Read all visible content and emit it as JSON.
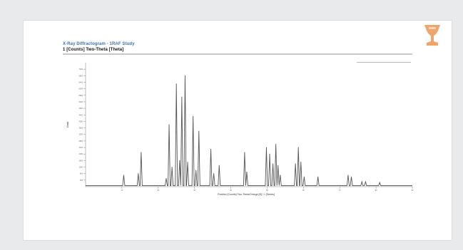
{
  "logo": {
    "icon": "trophy-icon",
    "color": "#f0a66a"
  },
  "chart_data": {
    "type": "line",
    "title": "X-Ray Diffractogram - 1RAF Study",
    "subtitle": "1 [Counts] Two-Theta [Theta]",
    "xlabel": "Position [Counts] Two-Theta/Omega [Θ] / 1 [Series]",
    "ylabel": "Data",
    "xlim": [
      0,
      90
    ],
    "ylim": [
      0,
      7600
    ],
    "x_ticks": [
      10,
      20,
      30,
      40,
      50,
      60,
      70,
      80,
      90
    ],
    "y_ticks": [
      400,
      800,
      1200,
      1600,
      2000,
      2400,
      2800,
      3200,
      3600,
      4000,
      4400,
      4800,
      5200,
      5600,
      6000,
      6400,
      6800,
      7200
    ],
    "baseline": 60,
    "line_color": "#555555",
    "legend_position": "top-right",
    "peaks": [
      {
        "x": 10.5,
        "y": 700
      },
      {
        "x": 14.5,
        "y": 800
      },
      {
        "x": 15.3,
        "y": 2100
      },
      {
        "x": 22.2,
        "y": 500
      },
      {
        "x": 23.0,
        "y": 3800
      },
      {
        "x": 23.8,
        "y": 1200
      },
      {
        "x": 25.0,
        "y": 6300
      },
      {
        "x": 25.9,
        "y": 1600
      },
      {
        "x": 26.5,
        "y": 5500
      },
      {
        "x": 27.4,
        "y": 6800
      },
      {
        "x": 28.1,
        "y": 1500
      },
      {
        "x": 29.6,
        "y": 4300
      },
      {
        "x": 30.4,
        "y": 1000
      },
      {
        "x": 31.2,
        "y": 3400
      },
      {
        "x": 34.5,
        "y": 2300
      },
      {
        "x": 35.3,
        "y": 800
      },
      {
        "x": 36.8,
        "y": 1300
      },
      {
        "x": 43.8,
        "y": 2100
      },
      {
        "x": 44.4,
        "y": 900
      },
      {
        "x": 49.8,
        "y": 2400
      },
      {
        "x": 50.7,
        "y": 2000
      },
      {
        "x": 51.6,
        "y": 1400
      },
      {
        "x": 52.4,
        "y": 2600
      },
      {
        "x": 53.0,
        "y": 1300
      },
      {
        "x": 53.6,
        "y": 700
      },
      {
        "x": 57.8,
        "y": 1400
      },
      {
        "x": 58.6,
        "y": 2400
      },
      {
        "x": 59.3,
        "y": 1500
      },
      {
        "x": 60.2,
        "y": 600
      },
      {
        "x": 64.0,
        "y": 600
      },
      {
        "x": 72.3,
        "y": 700
      },
      {
        "x": 73.2,
        "y": 600
      },
      {
        "x": 76.1,
        "y": 300
      },
      {
        "x": 77.1,
        "y": 300
      },
      {
        "x": 81.0,
        "y": 250
      }
    ]
  }
}
